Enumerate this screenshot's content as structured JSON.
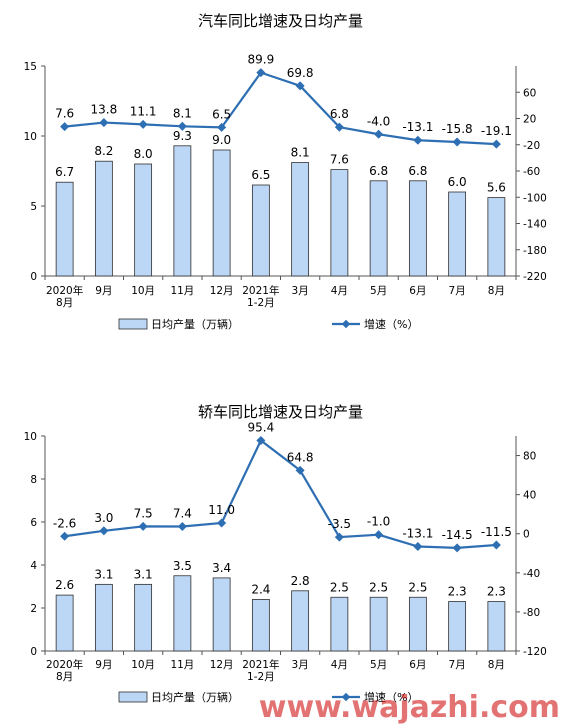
{
  "chart_data": [
    {
      "type": "bar",
      "title": "汽车同比增速及日均产量",
      "categories": [
        "2020年\n8月",
        "9月",
        "10月",
        "11月",
        "12月",
        "2021年\n1-2月",
        "3月",
        "4月",
        "5月",
        "6月",
        "7月",
        "8月"
      ],
      "series": [
        {
          "name": "日均产量（万辆）",
          "type": "bar",
          "axis": "left",
          "values": [
            6.7,
            8.2,
            8.0,
            9.3,
            9.0,
            6.5,
            8.1,
            7.6,
            6.8,
            6.8,
            6.0,
            5.6
          ]
        },
        {
          "name": "增速（%）",
          "type": "line",
          "axis": "right",
          "values": [
            7.6,
            13.8,
            11.1,
            8.1,
            6.5,
            89.9,
            69.8,
            6.8,
            -4.0,
            -13.1,
            -15.8,
            -19.1
          ]
        }
      ],
      "ylim": [
        0,
        15
      ],
      "yticks": [
        0,
        5,
        10,
        15
      ],
      "y2lim": [
        -220,
        100
      ],
      "y2ticks": [
        60,
        20,
        -20,
        -60,
        -100,
        -140,
        -180,
        -220
      ],
      "legend": "bottom"
    },
    {
      "type": "bar",
      "title": "轿车同比增速及日均产量",
      "categories": [
        "2020年\n8月",
        "9月",
        "10月",
        "11月",
        "12月",
        "2021年\n1-2月",
        "3月",
        "4月",
        "5月",
        "6月",
        "7月",
        "8月"
      ],
      "series": [
        {
          "name": "日均产量（万辆）",
          "type": "bar",
          "axis": "left",
          "values": [
            2.6,
            3.1,
            3.1,
            3.5,
            3.4,
            2.4,
            2.8,
            2.5,
            2.5,
            2.5,
            2.3,
            2.3
          ]
        },
        {
          "name": "增速（%）",
          "type": "line",
          "axis": "right",
          "values": [
            -2.6,
            3.0,
            7.5,
            7.4,
            11.0,
            95.4,
            64.8,
            -3.5,
            -1.0,
            -13.1,
            -14.5,
            -11.5
          ]
        }
      ],
      "ylim": [
        0,
        10
      ],
      "yticks": [
        0,
        2,
        4,
        6,
        8,
        10
      ],
      "y2lim": [
        -120,
        100
      ],
      "y2ticks": [
        80,
        40,
        0,
        -40,
        -80,
        -120
      ],
      "legend": "bottom"
    }
  ],
  "watermark": "www.wajazhi.com",
  "colors": {
    "bar_fill": "#bcd7f5",
    "bar_stroke": "#2f2f2f",
    "line": "#2e6fb3",
    "axis": "#555555",
    "watermark": "#cc0000"
  }
}
